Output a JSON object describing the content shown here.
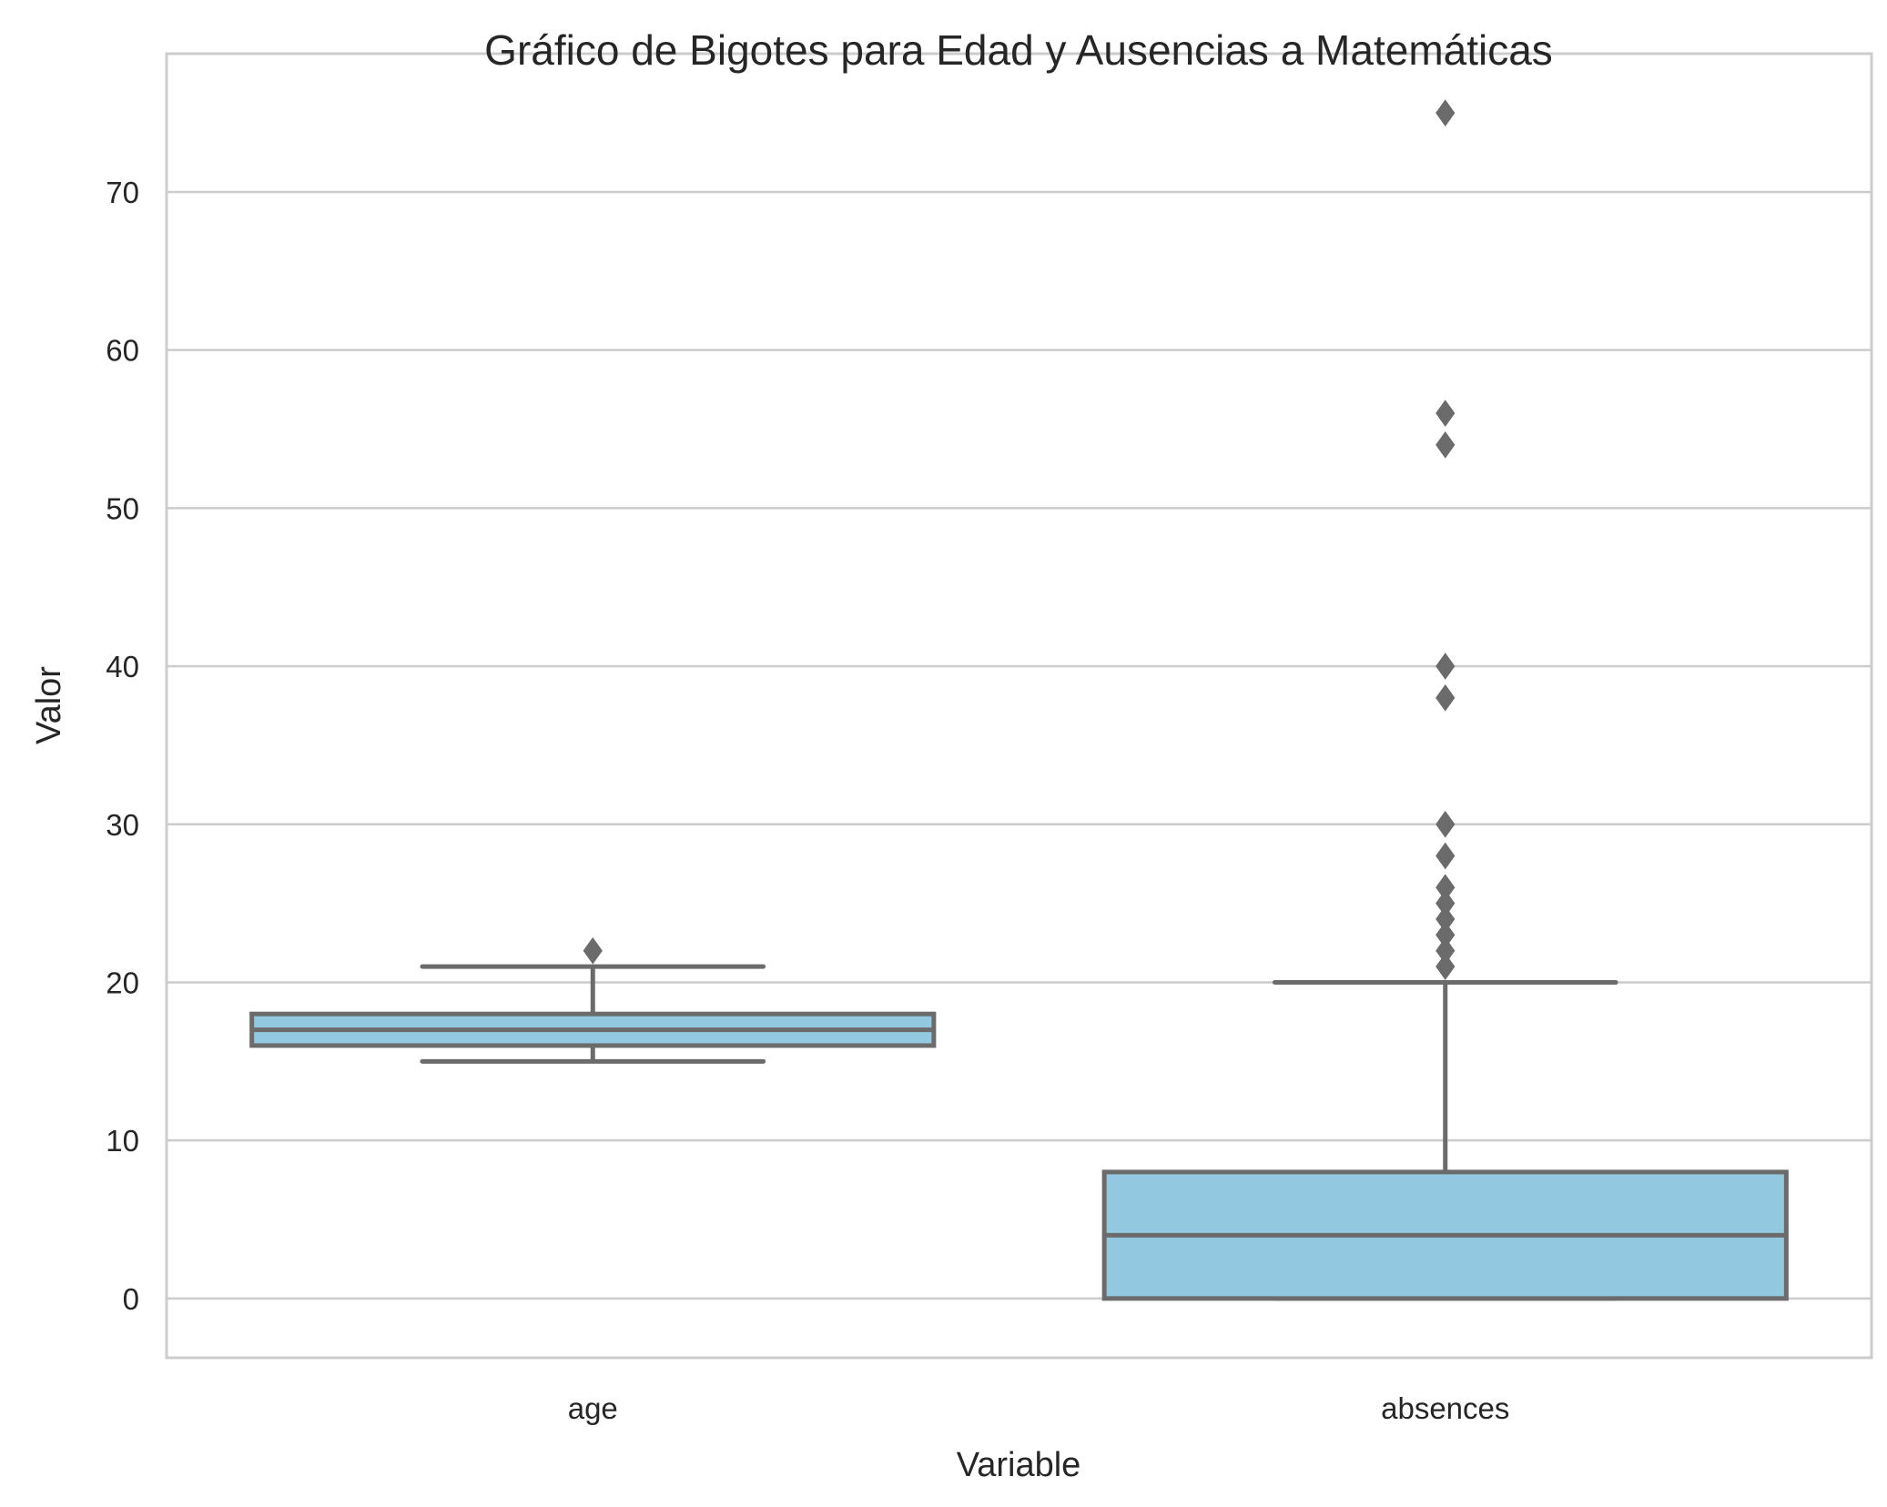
{
  "chart_data": {
    "type": "box",
    "title": "Gráfico de Bigotes para Edad y Ausencias a Matemáticas",
    "xlabel": "Variable",
    "ylabel": "Valor",
    "ylim": [
      -3.75,
      78.75
    ],
    "yticks": [
      0,
      10,
      20,
      30,
      40,
      50,
      60,
      70
    ],
    "ytick_labels": [
      "0",
      "10",
      "20",
      "30",
      "40",
      "50",
      "60",
      "70"
    ],
    "grid": "horizontal",
    "categories": [
      "age",
      "absences"
    ],
    "boxes": [
      {
        "category": "age",
        "whisker_low": 15,
        "q1": 16,
        "median": 17,
        "q3": 18,
        "whisker_high": 21,
        "outliers": [
          22
        ]
      },
      {
        "category": "absences",
        "whisker_low": 0,
        "q1": 0,
        "median": 4,
        "q3": 8,
        "whisker_high": 20,
        "outliers": [
          21,
          22,
          23,
          24,
          25,
          26,
          28,
          30,
          38,
          40,
          54,
          56,
          75
        ]
      }
    ],
    "colors": {
      "box_fill": "#93c9e0",
      "line": "#6b6b6b",
      "grid": "#cccccc",
      "text": "#262626"
    }
  }
}
